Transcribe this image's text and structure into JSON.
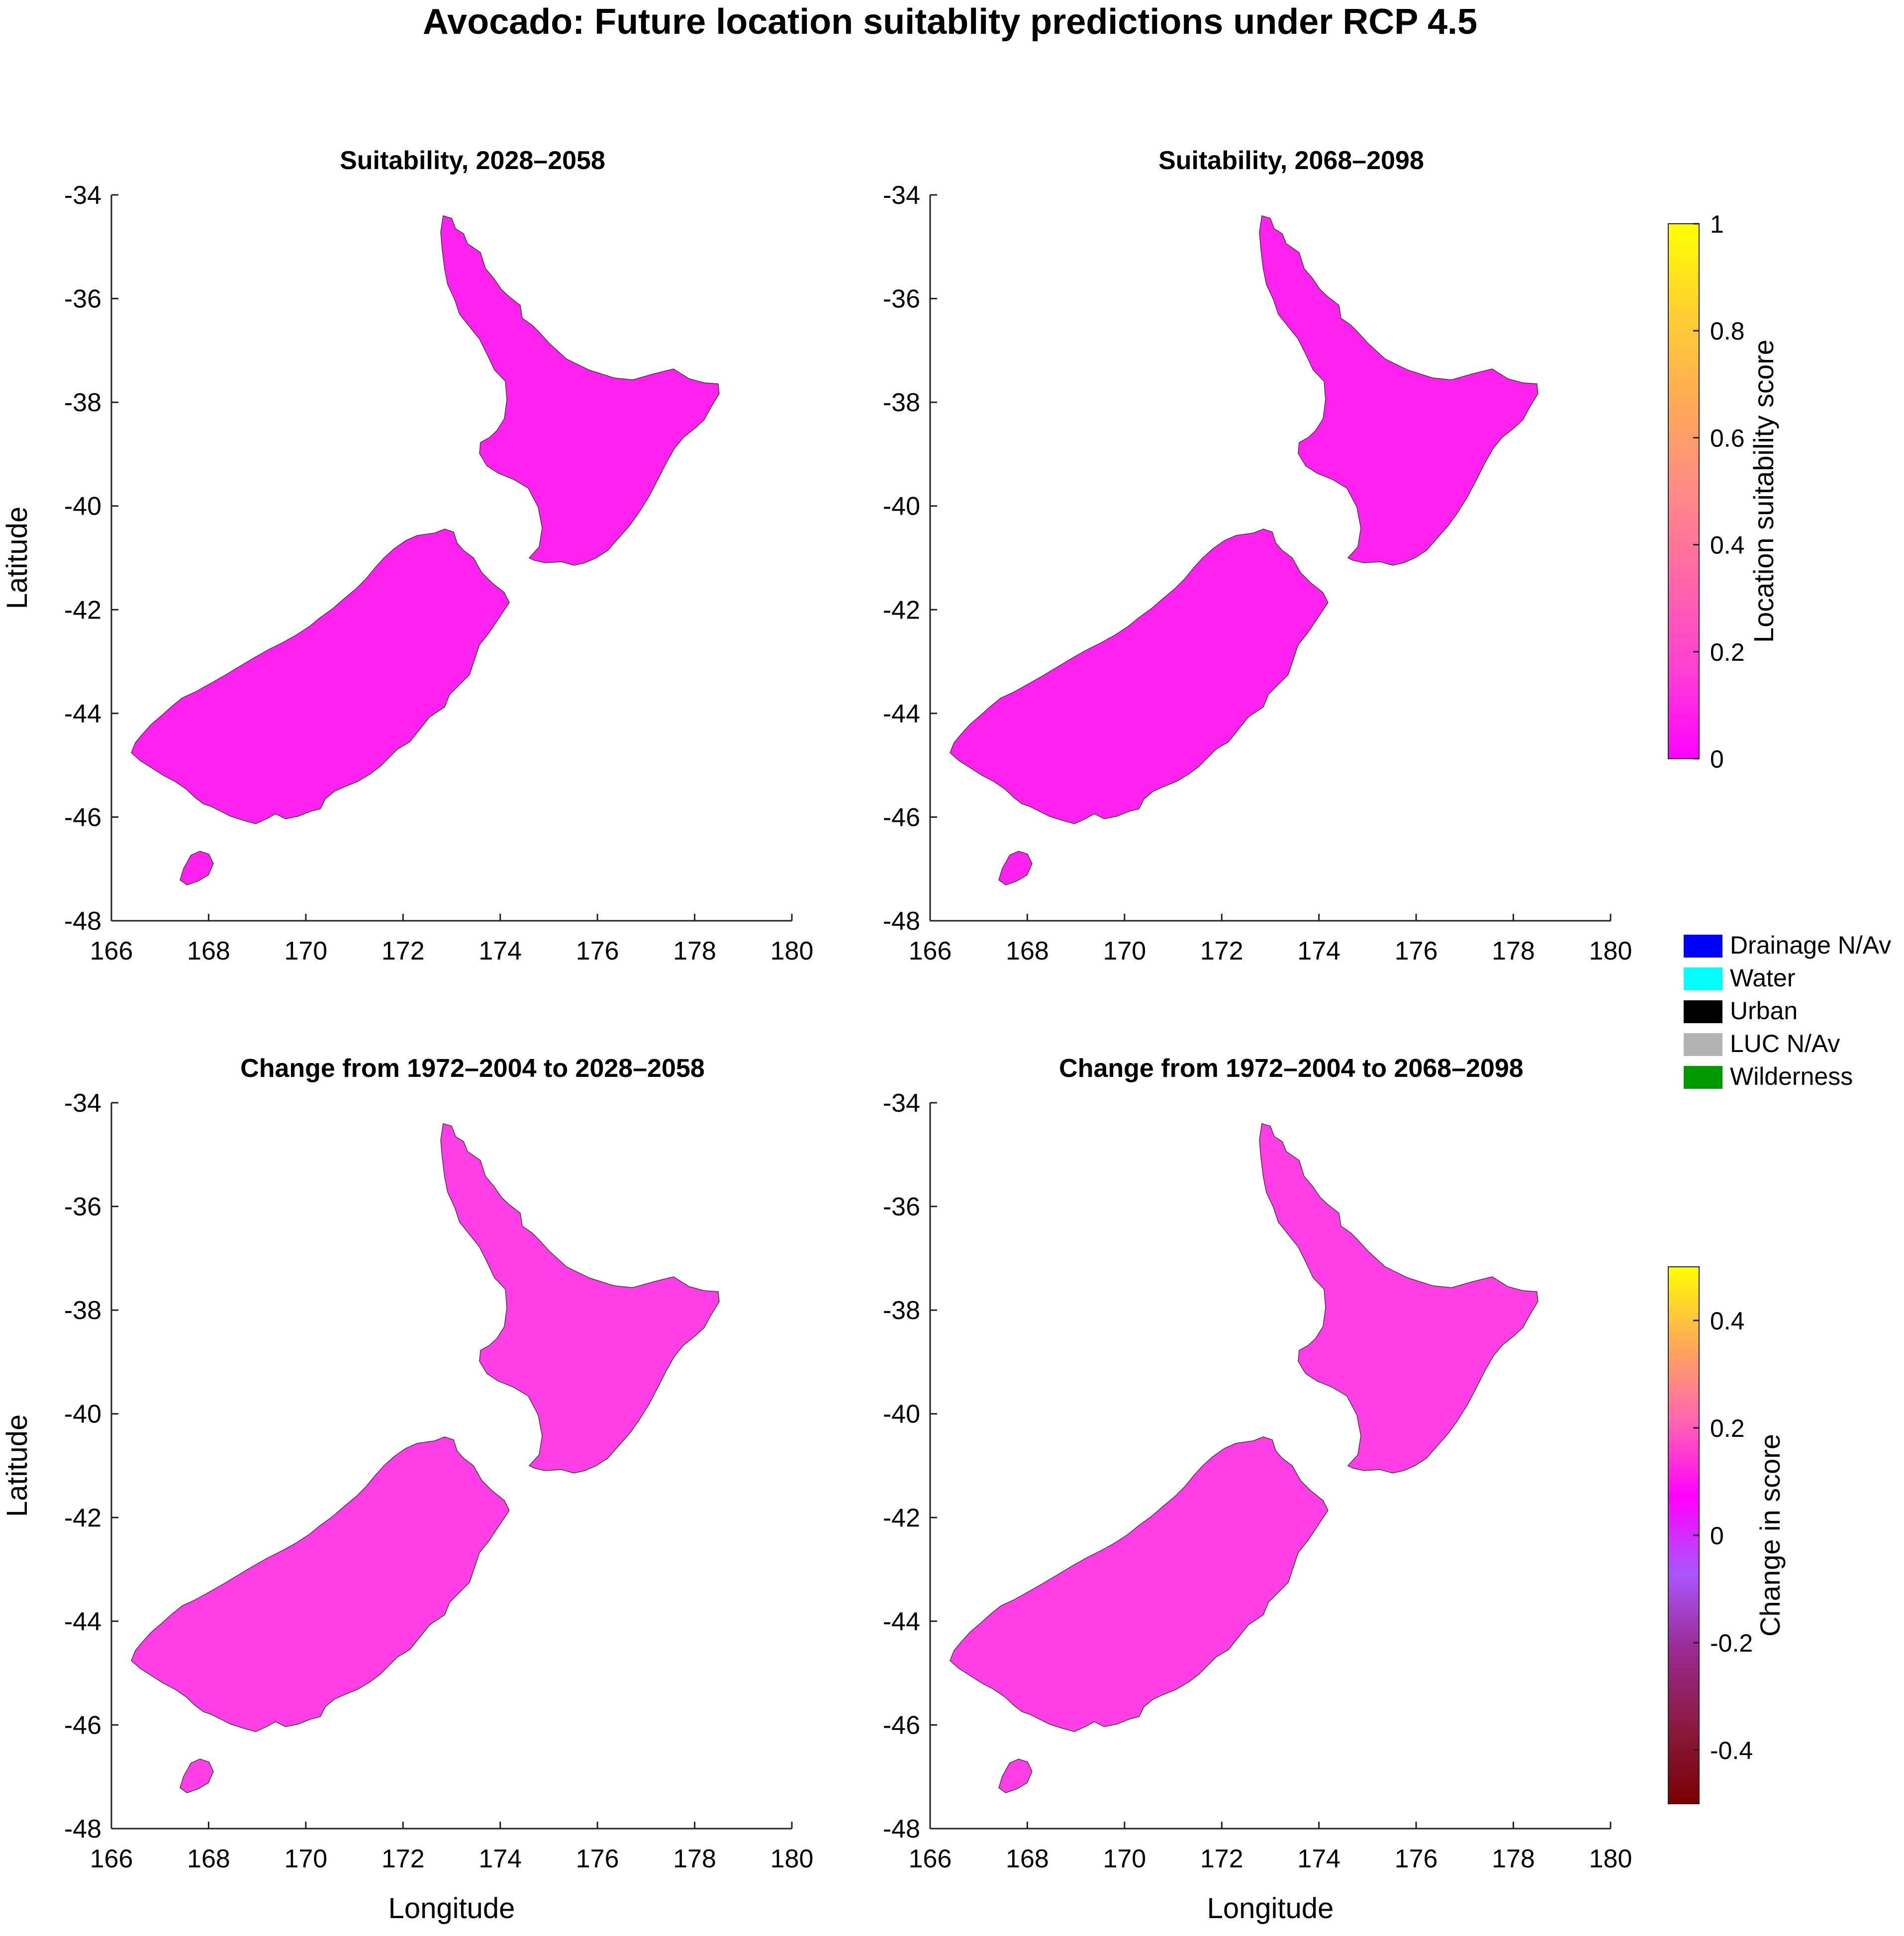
{
  "figure": {
    "title": "Avocado: Future location suitablity predictions under RCP 4.5"
  },
  "panels": [
    {
      "id": "suit-2028",
      "title": "Suitability, 2028–2058",
      "kind": "suitability"
    },
    {
      "id": "suit-2068",
      "title": "Suitability, 2068–2098",
      "kind": "suitability"
    },
    {
      "id": "change-2028",
      "title": "Change from 1972–2004 to 2028–2058",
      "kind": "change"
    },
    {
      "id": "change-2068",
      "title": "Change from 1972–2004 to 2068–2098",
      "kind": "change"
    }
  ],
  "axes": {
    "xlabel": "Longitude",
    "ylabel": "Latitude",
    "xlim": [
      166,
      180
    ],
    "ylim": [
      -48,
      -34
    ],
    "xticks": [
      "166",
      "168",
      "170",
      "172",
      "174",
      "176",
      "178",
      "180"
    ],
    "yticks": [
      "-34",
      "-36",
      "-38",
      "-40",
      "-42",
      "-44",
      "-46",
      "-48"
    ]
  },
  "colorbars": {
    "suitability": {
      "label": "Location suitability score",
      "range": [
        0,
        1
      ],
      "ticks": [
        "0",
        "0.2",
        "0.4",
        "0.6",
        "0.8",
        "1"
      ],
      "stops": [
        "#ff00ff",
        "#ff3fd4",
        "#ff66a8",
        "#ff8a86",
        "#ffaa55",
        "#ffd030",
        "#ffff00"
      ]
    },
    "change": {
      "label": "Change in score",
      "range": [
        -0.5,
        0.5
      ],
      "ticks": [
        "-0.4",
        "-0.2",
        "0",
        "0.2",
        "0.4"
      ],
      "stops": [
        "#7a0000",
        "#8a1a40",
        "#9a2a90",
        "#aa55ff",
        "#ff00ff",
        "#ff66b0",
        "#ffaa55",
        "#ffff00"
      ]
    }
  },
  "legend": {
    "items": [
      {
        "label": "Drainage N/Av",
        "color": "#0000ff"
      },
      {
        "label": "Water",
        "color": "#00ffff"
      },
      {
        "label": "Urban",
        "color": "#000000"
      },
      {
        "label": "LUC N/Av",
        "color": "#b3b3b3"
      },
      {
        "label": "Wilderness",
        "color": "#009900"
      }
    ]
  },
  "map_colors": {
    "wilderness": "#0a9a14",
    "water": "#22eaf6",
    "suit_north": "#f9b247",
    "suit_north_hi": "#f8cf3c",
    "suit_mid": "#ff6fb0",
    "suit_low": "#ff22ee",
    "change_base": "#ff3ee6",
    "change_mid": "#ff72ae"
  }
}
